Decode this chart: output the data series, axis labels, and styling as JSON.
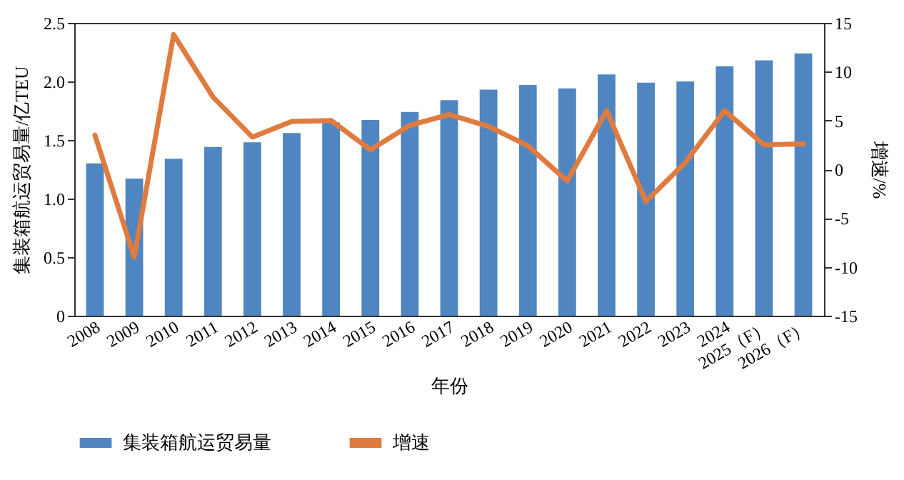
{
  "chart_data": {
    "type": "bar",
    "xlabel": "年份",
    "ylabel": "集装箱航运贸易量/亿TEU",
    "y2label": "增速/%",
    "categories": [
      "2008",
      "2009",
      "2010",
      "2011",
      "2012",
      "2013",
      "2014",
      "2015",
      "2016",
      "2017",
      "2018",
      "2019",
      "2020",
      "2021",
      "2022",
      "2023",
      "2024",
      "2025（F）",
      "2026（F）"
    ],
    "series": [
      {
        "name": "集装箱航运贸易量",
        "color": "#4f86c1",
        "values": [
          1.3,
          1.17,
          1.34,
          1.44,
          1.48,
          1.56,
          1.65,
          1.67,
          1.74,
          1.84,
          1.93,
          1.97,
          1.94,
          2.06,
          1.99,
          2.0,
          2.13,
          2.18,
          2.24
        ]
      },
      {
        "name": "增速",
        "type": "line",
        "axis": "y2",
        "color": "#e07b3f",
        "values": [
          3.5,
          -9.0,
          13.8,
          7.4,
          3.3,
          4.9,
          5.0,
          2.0,
          4.5,
          5.6,
          4.4,
          2.4,
          -1.2,
          6.0,
          -3.3,
          0.7,
          6.0,
          2.5,
          2.6
        ]
      }
    ],
    "ylim": [
      0,
      2.5
    ],
    "yticks": [
      0,
      0.5,
      {
        "value": 1,
        "label": "1.0"
      },
      1.5,
      {
        "value": 2,
        "label": "2.0"
      },
      2.5
    ],
    "y2lim": [
      -15,
      15
    ],
    "y2ticks": [
      -15,
      -10,
      -5,
      0,
      5,
      10,
      15
    ],
    "grid": false,
    "legend": "bottom"
  }
}
